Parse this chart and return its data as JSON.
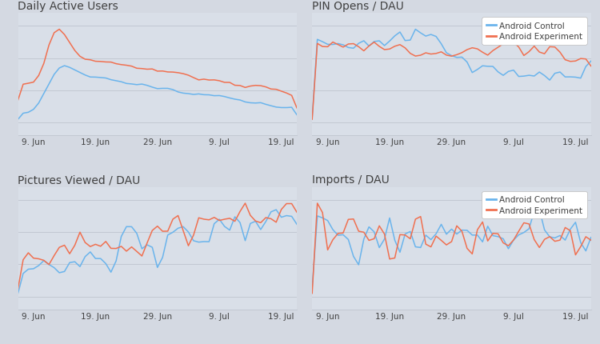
{
  "title_fontsize": 10,
  "tick_fontsize": 7.5,
  "legend_fontsize": 7.5,
  "bg_color": "#d4d9e2",
  "panel_bg_color": "#d9dfe8",
  "line_blue": "#6ab4ec",
  "line_orange": "#f07050",
  "grid_color": "#c2c8d2",
  "text_color": "#404040",
  "titles": [
    "Daily Active Users",
    "PIN Opens / DAU",
    "Pictures Viewed / DAU",
    "Imports / DAU"
  ],
  "x_ticks": [
    "9. Jun",
    "19. Jun",
    "29. Jun",
    "9. Jul",
    "19. Jul"
  ],
  "legend_labels": [
    "Android Control",
    "Android Experiment"
  ],
  "n_points": 55
}
